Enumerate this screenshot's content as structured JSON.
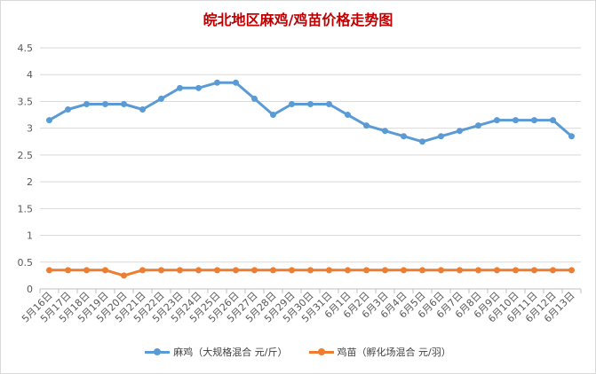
{
  "chart_data": {
    "type": "line",
    "title": "皖北地区麻鸡/鸡苗价格走势图",
    "ylim": [
      0,
      4.5
    ],
    "yticks": [
      "0",
      "0.5",
      "1",
      "1.5",
      "2",
      "2.5",
      "3",
      "3.5",
      "4",
      "4.5"
    ],
    "grid": "horizontal",
    "legend_position": "bottom",
    "categories": [
      "5月16日",
      "5月17日",
      "5月18日",
      "5月19日",
      "5月20日",
      "5月21日",
      "5月22日",
      "5月23日",
      "5月24日",
      "5月25日",
      "5月26日",
      "5月27日",
      "5月28日",
      "5月29日",
      "5月30日",
      "5月31日",
      "6月1日",
      "6月2日",
      "6月3日",
      "6月4日",
      "6月5日",
      "6月6日",
      "6月7日",
      "6月8日",
      "6月9日",
      "6月10日",
      "6月11日",
      "6月12日",
      "6月13日"
    ],
    "series": [
      {
        "name": "麻鸡（大规格混合 元/斤）",
        "color": "#5b9bd5",
        "values": [
          3.15,
          3.35,
          3.45,
          3.45,
          3.45,
          3.35,
          3.55,
          3.75,
          3.75,
          3.85,
          3.85,
          3.55,
          3.25,
          3.45,
          3.45,
          3.45,
          3.25,
          3.05,
          2.95,
          2.85,
          2.75,
          2.85,
          2.95,
          3.05,
          3.15,
          3.15,
          3.15,
          3.15,
          2.85
        ]
      },
      {
        "name": "鸡苗（孵化场混合 元/羽）",
        "color": "#ed7d31",
        "values": [
          0.35,
          0.35,
          0.35,
          0.35,
          0.25,
          0.35,
          0.35,
          0.35,
          0.35,
          0.35,
          0.35,
          0.35,
          0.35,
          0.35,
          0.35,
          0.35,
          0.35,
          0.35,
          0.35,
          0.35,
          0.35,
          0.35,
          0.35,
          0.35,
          0.35,
          0.35,
          0.35,
          0.35,
          0.35
        ]
      }
    ]
  }
}
